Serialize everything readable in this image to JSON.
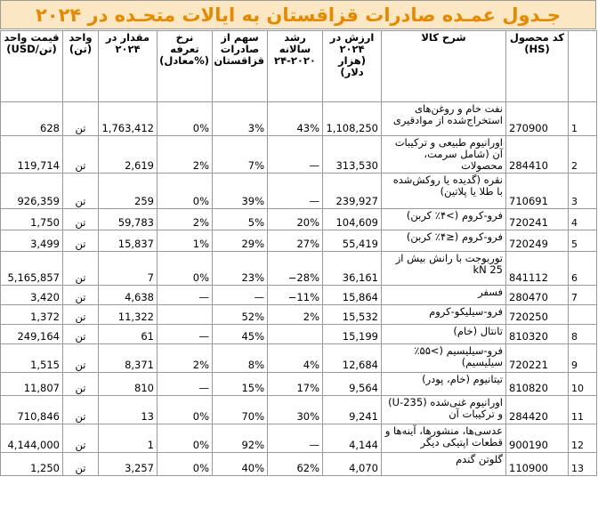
{
  "title": "جـدول عمـده صادرات قزاقستان به ایالات متحـده در ۲۰۲۴",
  "headers": {
    "price": "قیمت واحد (USD/تن)",
    "unit": "واحد (تن)",
    "qty": "مقدار در ۲۰۲۴",
    "tariff": "نرخ تعرفه (%معادل)",
    "share": "سهم از صادرات قزاقستان",
    "growth": "رشد سالانه ۲۰۲۰-۲۴",
    "value": "ارزش در ۲۰۲۴ (هزار دلار)",
    "desc": "شرح کالا",
    "hs": "کد محصول (HS)"
  },
  "rows": [
    {
      "idx": "1",
      "hs": "270900",
      "desc": "نفت خام و روغن‌های استخراج‌شده از موادقیری",
      "value": "1,108,250",
      "growth": "43%",
      "share": "3%",
      "tariff": "0%",
      "qty": "1,763,412",
      "unit": "تن",
      "price": "628"
    },
    {
      "idx": "2",
      "hs": "284410",
      "desc": "اورانیوم طبیعی و ترکیبات آن (شامل سرمت، محصولات",
      "value": "313,530",
      "growth": "—",
      "share": "7%",
      "tariff": "2%",
      "qty": "2,619",
      "unit": "تن",
      "price": "119,714"
    },
    {
      "idx": "3",
      "hs": "710691",
      "desc": "نقره (گدیده یا روکش‌شده با طلا یا پلاتین)",
      "value": "239,927",
      "growth": "—",
      "share": "39%",
      "tariff": "0%",
      "qty": "259",
      "unit": "تن",
      "price": "926,359"
    },
    {
      "idx": "4",
      "hs": "720241",
      "desc": "فرو-کروم (>۴٪ کربن)",
      "value": "104,609",
      "growth": "20%",
      "share": "5%",
      "tariff": "2%",
      "qty": "59,783",
      "unit": "تن",
      "price": "1,750"
    },
    {
      "idx": "5",
      "hs": "720249",
      "desc": "فرو-کروم (≤۴٪ کربن)",
      "value": "55,419",
      "growth": "27%",
      "share": "29%",
      "tariff": "1%",
      "qty": "15,837",
      "unit": "تن",
      "price": "3,499"
    },
    {
      "idx": "6",
      "hs": "841112",
      "desc": "توربوجت با رانش بیش از 25 kN",
      "value": "36,161",
      "growth": "−28%",
      "share": "23%",
      "tariff": "0%",
      "qty": "7",
      "unit": "تن",
      "price": "5,165,857"
    },
    {
      "idx": "7",
      "hs": "280470",
      "desc": "فسفر",
      "value": "15,864",
      "growth": "−11%",
      "share": "—",
      "tariff": "—",
      "qty": "4,638",
      "unit": "تن",
      "price": "3,420"
    },
    {
      "idx": "",
      "hs": "720250",
      "desc": "فرو-سیلیکو-کروم",
      "value": "15,532",
      "growth": "2%",
      "share": "52%",
      "tariff": "",
      "qty": "11,322",
      "unit": "تن",
      "price": "1,372"
    },
    {
      "idx": "8",
      "hs": "810320",
      "desc": "تانتال (خام)",
      "value": "15,199",
      "growth": "",
      "share": "45%",
      "tariff": "—",
      "qty": "61",
      "unit": "تن",
      "price": "249,164"
    },
    {
      "idx": "9",
      "hs": "720221",
      "desc": "فرو-سیلیسیم (>۵۵٪ سیلیسیم)",
      "value": "12,684",
      "growth": "4%",
      "share": "8%",
      "tariff": "2%",
      "qty": "8,371",
      "unit": "تن",
      "price": "1,515"
    },
    {
      "idx": "10",
      "hs": "810820",
      "desc": "تیتانیوم (خام، پودر)",
      "value": "9,564",
      "growth": "17%",
      "share": "15%",
      "tariff": "—",
      "qty": "810",
      "unit": "تن",
      "price": "11,807"
    },
    {
      "idx": "11",
      "hs": "284420",
      "desc": "اورانیوم غنی‌شده (U-235) و ترکیبات آن",
      "value": "9,241",
      "growth": "30%",
      "share": "70%",
      "tariff": "0%",
      "qty": "13",
      "unit": "تن",
      "price": "710,846"
    },
    {
      "idx": "12",
      "hs": "900190",
      "desc": "عدسی‌ها، منشورها، آینه‌ها و قطعات اپتیکی دیگر",
      "value": "4,144",
      "growth": "—",
      "share": "92%",
      "tariff": "0%",
      "qty": "1",
      "unit": "تن",
      "price": "4,144,000"
    },
    {
      "idx": "13",
      "hs": "110900",
      "desc": "گلوتن گندم",
      "value": "4,070",
      "growth": "62%",
      "share": "40%",
      "tariff": "0%",
      "qty": "3,257",
      "unit": "تن",
      "price": "1,250"
    }
  ]
}
